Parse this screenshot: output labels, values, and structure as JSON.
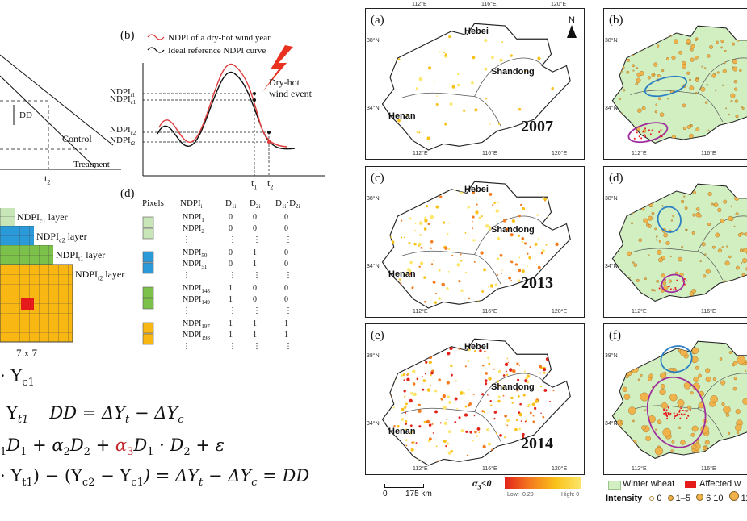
{
  "panel_b": {
    "label": "(b)",
    "legend": [
      "NDPI of a dry-hot wind year",
      "Ideal reference NDPI curve"
    ],
    "event_label_1": "Dry-hot",
    "event_label_2": "wind event",
    "y_labels": [
      "NDPI",
      "NDPI",
      "NDPI",
      "NDPI"
    ],
    "y_subs": [
      "t1",
      "c1",
      "c2",
      "t2"
    ],
    "x_labels": [
      "t",
      "t"
    ],
    "x_subs": [
      "1",
      "2"
    ]
  },
  "panel_a": {
    "dd": "DD",
    "control": "Control",
    "treatment": "Treatment",
    "t2": "t",
    "t2_sub": "2"
  },
  "panel_d": {
    "label": "(d)",
    "headers": [
      "Pixels",
      "NDPI",
      "D",
      "D",
      "D",
      "·D"
    ],
    "header_subs": [
      "i",
      "1i",
      "2i",
      "1i",
      "2i"
    ],
    "rows": [
      {
        "name": "NDPI",
        "sub": "1",
        "d1": "0",
        "d2": "0",
        "d12": "0"
      },
      {
        "name": "NDPI",
        "sub": "2",
        "d1": "0",
        "d2": "0",
        "d12": "0"
      },
      {
        "name": "⋮",
        "sub": "",
        "d1": "⋮",
        "d2": "⋮",
        "d12": "⋮"
      },
      {
        "name": "NDPI",
        "sub": "50",
        "d1": "0",
        "d2": "1",
        "d12": "0"
      },
      {
        "name": "NDPI",
        "sub": "51",
        "d1": "0",
        "d2": "1",
        "d12": "0"
      },
      {
        "name": "⋮",
        "sub": "",
        "d1": "⋮",
        "d2": "⋮",
        "d12": "⋮"
      },
      {
        "name": "NDPI",
        "sub": "148",
        "d1": "1",
        "d2": "0",
        "d12": "0"
      },
      {
        "name": "NDPI",
        "sub": "149",
        "d1": "1",
        "d2": "0",
        "d12": "0"
      },
      {
        "name": "⋮",
        "sub": "",
        "d1": "⋮",
        "d2": "⋮",
        "d12": "⋮"
      },
      {
        "name": "NDPI",
        "sub": "197",
        "d1": "1",
        "d2": "1",
        "d12": "1"
      },
      {
        "name": "NDPI",
        "sub": "198",
        "d1": "1",
        "d2": "1",
        "d12": "1"
      },
      {
        "name": "⋮",
        "sub": "",
        "d1": "⋮",
        "d2": "⋮",
        "d12": "⋮"
      }
    ]
  },
  "layers": {
    "c1": {
      "pre": "NDPI",
      "sub": "c1",
      "post": " layer"
    },
    "c2": {
      "pre": "NDPI",
      "sub": "c2",
      "post": " layer"
    },
    "t1": {
      "pre": "NDPI",
      "sub": "t1",
      "post": " layer"
    },
    "t2": {
      "pre": "NDPI",
      "sub": "t2",
      "post": " layer"
    },
    "grid_size": "7 x 7"
  },
  "equations": {
    "l1": "· Y",
    "l1_sub": "c1",
    "l2a": "Y",
    "l2a_sub": "t1",
    "l2b": "DD = ΔY",
    "l2b_sub1": "t",
    "l2b_mid": " − ΔY",
    "l2b_sub2": "c",
    "l3a": "D",
    "l3a_sub": "1",
    "l3b": " + α",
    "l3b_sub": "2",
    "l3c": "D",
    "l3c_sub": "2",
    "l3d": " + ",
    "l3e_alpha": "α",
    "l3e_sub": "3",
    "l3f": "D",
    "l3f_sub": "1",
    "l3g": " · D",
    "l3g_sub": "2",
    "l3h": " + ε",
    "l4a": "· Y",
    "l4a_sub": "t1",
    "l4b": ") − (Y",
    "l4b_sub": "c2",
    "l4c": " − Y",
    "l4c_sub": "c1",
    "l4d": ") = ΔY",
    "l4d_sub": "t",
    "l4e": " − ΔY",
    "l4e_sub": "c",
    "l4f": " = DD"
  },
  "maps": {
    "left_panels": [
      {
        "label": "(a)",
        "year": "2007"
      },
      {
        "label": "(c)",
        "year": "2013"
      },
      {
        "label": "(e)",
        "year": "2014"
      }
    ],
    "right_panels": [
      "(b)",
      "(d)",
      "(f)"
    ],
    "provinces": [
      "Hebei",
      "Shandong",
      "Henan"
    ],
    "north": "N",
    "lat_ticks": [
      "38°N",
      "34°N"
    ],
    "lon_ticks_top": [
      "112°E",
      "116°E",
      "120°E"
    ],
    "lon_ticks_bottom": [
      "112°E",
      "116°E",
      "120°E"
    ],
    "lon_ticks_right_top": [
      "112°E",
      "116°E"
    ]
  },
  "scale_bar": {
    "zero": "0",
    "dist": "175 km"
  },
  "colorbar": {
    "title": "α",
    "title_sub": "3",
    "title_post": "<0",
    "low": "Low: -0.20",
    "high": "High: 0"
  },
  "bottom_legend": {
    "winter_wheat": "Winter wheat",
    "affected": "Affected w",
    "intensity_label": "Intensity",
    "intensity_values": [
      "0",
      "1–5",
      "6",
      "10",
      "11"
    ]
  },
  "colors": {
    "red_curve": "#e03a3a",
    "wheat_green": "#d2efc2",
    "layer_light_green": "#c8e6b8",
    "layer_blue": "#2a9ad8",
    "layer_green": "#7cc24a",
    "layer_orange": "#f8b712",
    "pixel_red": "#e51a1a",
    "ellipse_blue": "#2a7fc4",
    "ellipse_purple": "#a02b9c"
  }
}
